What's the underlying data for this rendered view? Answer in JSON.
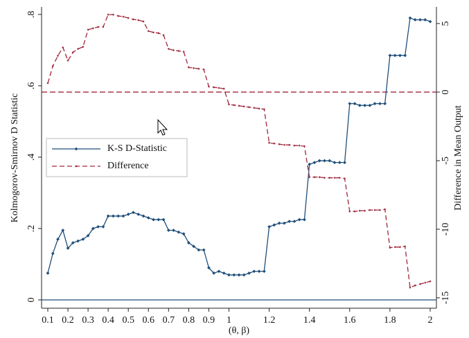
{
  "chart_data": {
    "type": "line",
    "x_label": "(θ, β)",
    "y_label": "Kolmogorov-Smirnov D Statistic",
    "y2_label": "Difference in Mean Output",
    "x": [
      0.1,
      0.125,
      0.15,
      0.175,
      0.2,
      0.225,
      0.25,
      0.275,
      0.3,
      0.325,
      0.35,
      0.375,
      0.4,
      0.425,
      0.45,
      0.475,
      0.5,
      0.525,
      0.55,
      0.575,
      0.6,
      0.625,
      0.65,
      0.675,
      0.7,
      0.725,
      0.75,
      0.775,
      0.8,
      0.825,
      0.85,
      0.875,
      0.9,
      0.925,
      0.95,
      0.975,
      1.0,
      1.025,
      1.05,
      1.075,
      1.1,
      1.125,
      1.15,
      1.175,
      1.2,
      1.225,
      1.25,
      1.275,
      1.3,
      1.325,
      1.35,
      1.375,
      1.4,
      1.425,
      1.45,
      1.475,
      1.5,
      1.525,
      1.55,
      1.575,
      1.6,
      1.625,
      1.65,
      1.675,
      1.7,
      1.725,
      1.75,
      1.775,
      1.8,
      1.825,
      1.85,
      1.875,
      1.9,
      1.925,
      1.95,
      1.975,
      2.0
    ],
    "series": [
      {
        "name": "K-S D-Statistic",
        "color": "#1f4e79",
        "dash": false,
        "values": [
          0.075,
          0.13,
          0.17,
          0.195,
          0.145,
          0.16,
          0.165,
          0.17,
          0.18,
          0.2,
          0.205,
          0.205,
          0.235,
          0.235,
          0.235,
          0.235,
          0.24,
          0.245,
          0.24,
          0.235,
          0.23,
          0.225,
          0.225,
          0.225,
          0.195,
          0.195,
          0.19,
          0.185,
          0.16,
          0.15,
          0.14,
          0.14,
          0.09,
          0.075,
          0.08,
          0.075,
          0.07,
          0.07,
          0.07,
          0.07,
          0.075,
          0.08,
          0.08,
          0.08,
          0.205,
          0.21,
          0.215,
          0.215,
          0.22,
          0.22,
          0.225,
          0.225,
          0.38,
          0.385,
          0.39,
          0.39,
          0.39,
          0.385,
          0.385,
          0.385,
          0.55,
          0.55,
          0.545,
          0.545,
          0.545,
          0.55,
          0.55,
          0.55,
          0.685,
          0.685,
          0.685,
          0.685,
          0.79,
          0.785,
          0.785,
          0.785,
          0.78
        ]
      },
      {
        "name": "Difference",
        "color": "#a0253a",
        "dash": true,
        "axis": "y2",
        "values": [
          0.65,
          1.9,
          2.65,
          3.25,
          2.3,
          2.9,
          3.15,
          3.3,
          4.55,
          4.65,
          4.75,
          4.75,
          5.65,
          5.65,
          5.55,
          5.5,
          5.4,
          5.3,
          5.25,
          5.15,
          4.45,
          4.35,
          4.3,
          4.15,
          3.15,
          3.05,
          3.0,
          2.95,
          1.8,
          1.75,
          1.7,
          1.65,
          0.4,
          0.35,
          0.3,
          0.25,
          -0.9,
          -0.95,
          -1.0,
          -1.05,
          -1.1,
          -1.15,
          -1.2,
          -1.25,
          -3.7,
          -3.75,
          -3.8,
          -3.85,
          -3.85,
          -3.9,
          -3.9,
          -3.95,
          -6.2,
          -6.2,
          -6.2,
          -6.25,
          -6.25,
          -6.25,
          -6.25,
          -6.3,
          -8.7,
          -8.7,
          -8.65,
          -8.65,
          -8.6,
          -8.6,
          -8.6,
          -8.55,
          -11.35,
          -11.3,
          -11.3,
          -11.25,
          -14.25,
          -14.1,
          -14.0,
          -13.9,
          -13.8
        ]
      }
    ],
    "xlim": [
      0.069,
      2.031
    ],
    "xticks": [
      0.1,
      0.2,
      0.3,
      0.4,
      0.5,
      0.6,
      0.7,
      0.8,
      0.9,
      1,
      1.2,
      1.4,
      1.6,
      1.8,
      2
    ],
    "ylim": [
      -0.0233,
      0.821
    ],
    "yticks": [
      0,
      {
        "value": 0.2,
        "label": ".2"
      },
      {
        "value": 0.4,
        "label": ".4"
      },
      {
        "value": 0.6,
        "label": ".6"
      },
      {
        "value": 0.8,
        "label": ".8"
      }
    ],
    "y2lim": [
      -15.76,
      6.21
    ],
    "y2ticks": [
      -15,
      -10,
      -5,
      0,
      5
    ],
    "reference_lines": [
      {
        "axis": "y2",
        "value": 0,
        "color": "#a0253a",
        "dash": true
      },
      {
        "axis": "y",
        "value": 0,
        "color": "#1f4e79",
        "dash": false
      }
    ],
    "legend": "upper-left"
  }
}
